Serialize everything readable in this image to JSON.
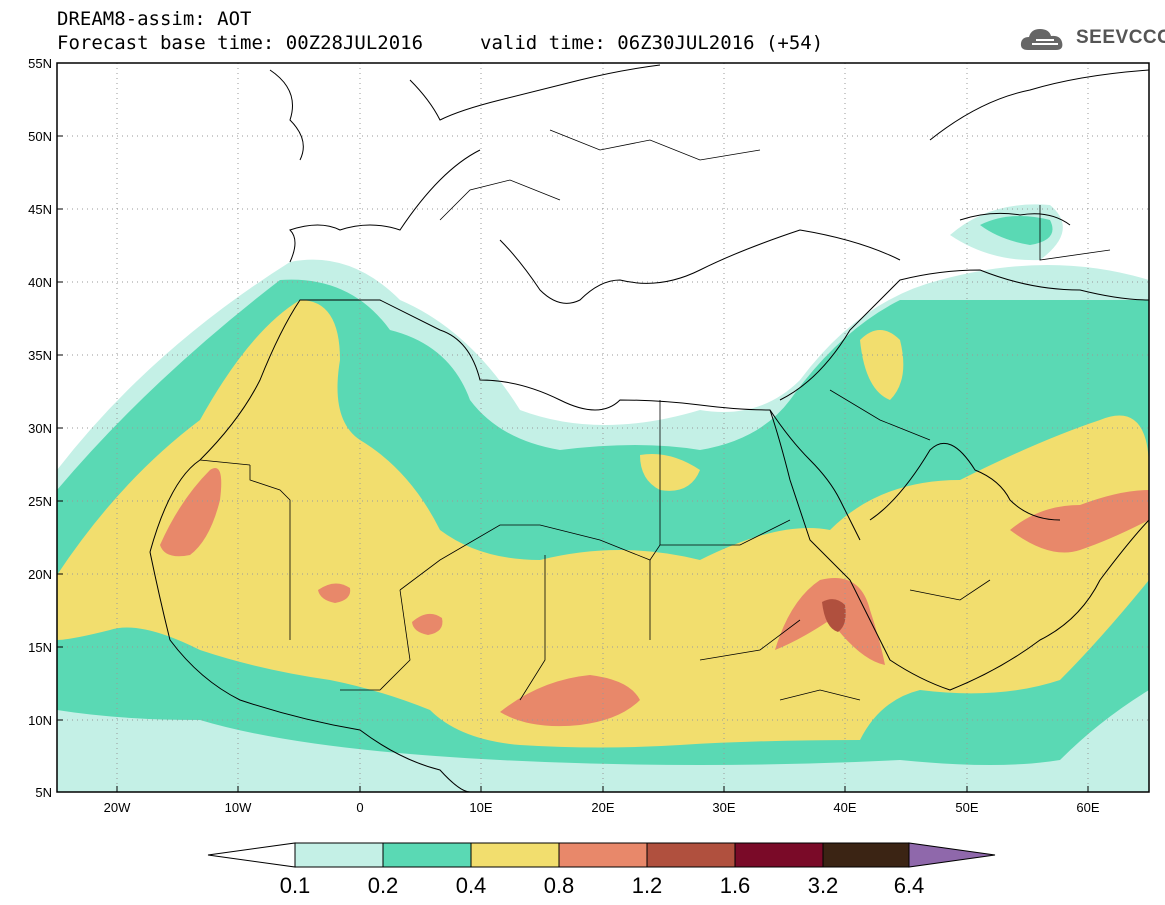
{
  "header": {
    "title": "DREAM8-assim: AOT",
    "base_time": "Forecast base time: 00Z28JUL2016",
    "valid_time": "valid time: 06Z30JUL2016 (+54)",
    "logo_text": "SEEVCCC",
    "logo_icon": "cloud-icon"
  },
  "map": {
    "lat_labels": [
      "55N",
      "50N",
      "45N",
      "40N",
      "35N",
      "30N",
      "25N",
      "20N",
      "15N",
      "10N",
      "5N"
    ],
    "lat_values": [
      55,
      50,
      45,
      40,
      35,
      30,
      25,
      20,
      15,
      10,
      5
    ],
    "lon_labels": [
      "20W",
      "10W",
      "0",
      "10E",
      "20E",
      "30E",
      "40E",
      "50E",
      "60E"
    ],
    "lon_values": [
      -20,
      -10,
      0,
      10,
      20,
      30,
      40,
      50,
      60
    ],
    "lon_range": [
      -25,
      65
    ],
    "lat_range": [
      5,
      55
    ],
    "grid": true
  },
  "colorbar": {
    "labels": [
      "0.1",
      "0.2",
      "0.4",
      "0.8",
      "1.2",
      "1.6",
      "3.2",
      "6.4"
    ],
    "colors": [
      "#c4f0e6",
      "#5ad9b4",
      "#f2de6e",
      "#e8886a",
      "#b0503e",
      "#7a0a28",
      "#3b2414"
    ],
    "over_color": "#8f68ab",
    "under_color": "#ffffff"
  }
}
